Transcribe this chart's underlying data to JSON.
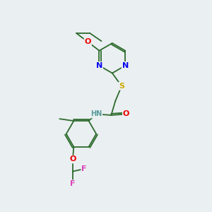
{
  "background_color": "#eaeff1",
  "bond_color": "#2d6b2d",
  "atom_colors": {
    "N": "#0000ee",
    "O": "#ee0000",
    "S": "#ccaa00",
    "F": "#dd44bb",
    "H": "#5a9a9a",
    "C": "#2d6b2d"
  },
  "font_size": 8,
  "figsize": [
    3.0,
    3.0
  ],
  "dpi": 100,
  "xlim": [
    0,
    10
  ],
  "ylim": [
    0,
    10
  ]
}
